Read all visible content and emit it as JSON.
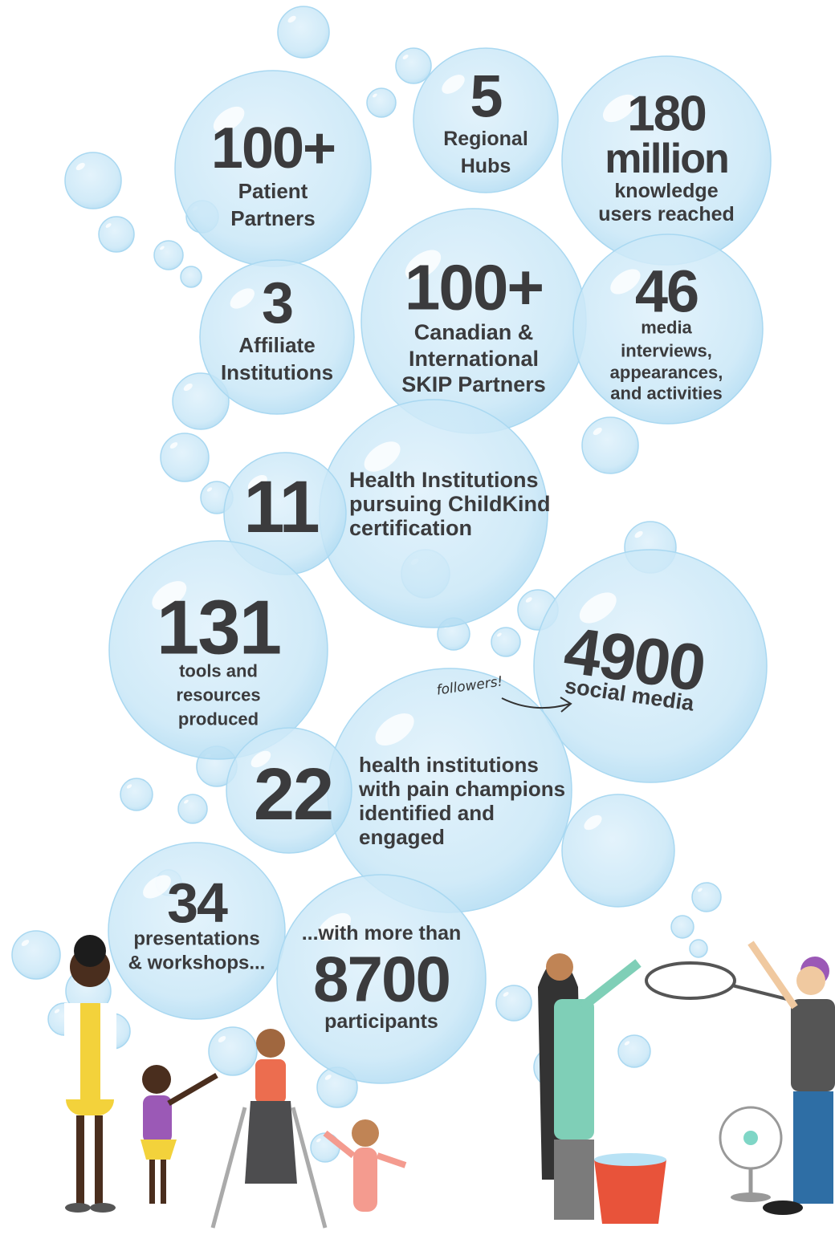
{
  "stats": [
    {
      "number": "100+",
      "lines": [
        "Patient",
        "Partners"
      ]
    },
    {
      "number": "5",
      "lines": [
        "Regional",
        "Hubs"
      ]
    },
    {
      "number": "180",
      "unit": "million",
      "lines": [
        "knowledge",
        "users reached"
      ]
    },
    {
      "number": "3",
      "lines": [
        "Affiliate",
        "Institutions"
      ]
    },
    {
      "number": "100+",
      "lines": [
        "Canadian &",
        "International",
        "SKIP Partners"
      ]
    },
    {
      "number": "46",
      "lines": [
        "media",
        "interviews,",
        "appearances,",
        "and activities"
      ]
    },
    {
      "number": "11",
      "lines": [
        "Health Institutions",
        "pursuing ChildKind",
        "certification"
      ]
    },
    {
      "number": "131",
      "lines": [
        "tools and",
        "resources",
        "produced"
      ]
    },
    {
      "number": "4900",
      "lines": [
        "social media"
      ],
      "annotation": "followers!"
    },
    {
      "number": "22",
      "lines": [
        "health institutions",
        "with pain champions",
        "identified and",
        "engaged"
      ]
    },
    {
      "number": "34",
      "lines": [
        "presentations",
        "& workshops..."
      ]
    },
    {
      "intro": "...with more than",
      "number": "8700",
      "lines": [
        "participants"
      ]
    }
  ]
}
